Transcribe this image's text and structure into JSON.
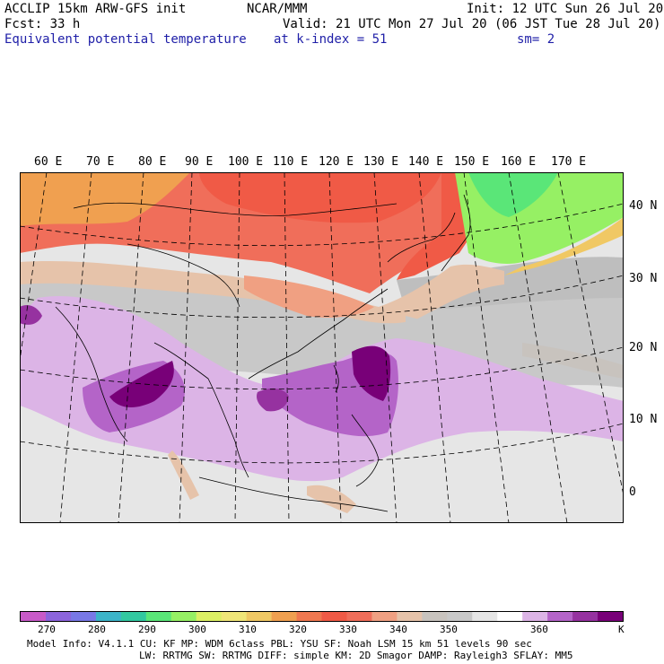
{
  "header": {
    "line1_left": "ACCLIP 15km ARW-GFS init",
    "line1_center": "NCAR/MMM",
    "line1_right": "Init: 12 UTC Sun 26 Jul 20",
    "line2_left": "Fcst:   33 h",
    "line2_right": "Valid: 21 UTC Mon 27 Jul 20 (06 JST Tue 28 Jul 20)",
    "line3_left": "Equivalent potential temperature",
    "line3_center": "at k-index =  51",
    "line3_right": "sm= 2"
  },
  "map": {
    "lon_labels": [
      "60 E",
      "70 E",
      "80 E",
      "90 E",
      "100 E",
      "110 E",
      "120 E",
      "130 E",
      "140 E",
      "150 E",
      "160 E",
      "170 E"
    ],
    "lat_labels": [
      "40 N",
      "30 N",
      "20 N",
      "10 N",
      "0"
    ]
  },
  "colorbar": {
    "colors": [
      "#c85ac8",
      "#8c64dc",
      "#7878e6",
      "#3cb4c8",
      "#32c8a0",
      "#5ae678",
      "#96f064",
      "#dcf064",
      "#f0e678",
      "#f0c864",
      "#f0a050",
      "#f07850",
      "#f05a46",
      "#f06e5a",
      "#f0a082",
      "#e6c3aa",
      "#c8c3be",
      "#c8c8c8",
      "#e6e6e6",
      "#ffffff",
      "#dcb4e6",
      "#b464c8",
      "#9632a0",
      "#780078"
    ],
    "labels": [
      "270",
      "280",
      "290",
      "300",
      "310",
      "320",
      "330",
      "340",
      "350",
      "360"
    ],
    "unit": "K"
  },
  "footer": {
    "line1": "Model Info: V4.1.1     CU: KF       MP: WDM 6class  PBL: YSU       SF: Noah LSM    15 km   51 levels   90 sec",
    "line2": "LW: RRTMG   SW: RRTMG  DIFF: simple KM: 2D Smagor DAMP: Rayleigh3  SFLAY: MM5"
  }
}
